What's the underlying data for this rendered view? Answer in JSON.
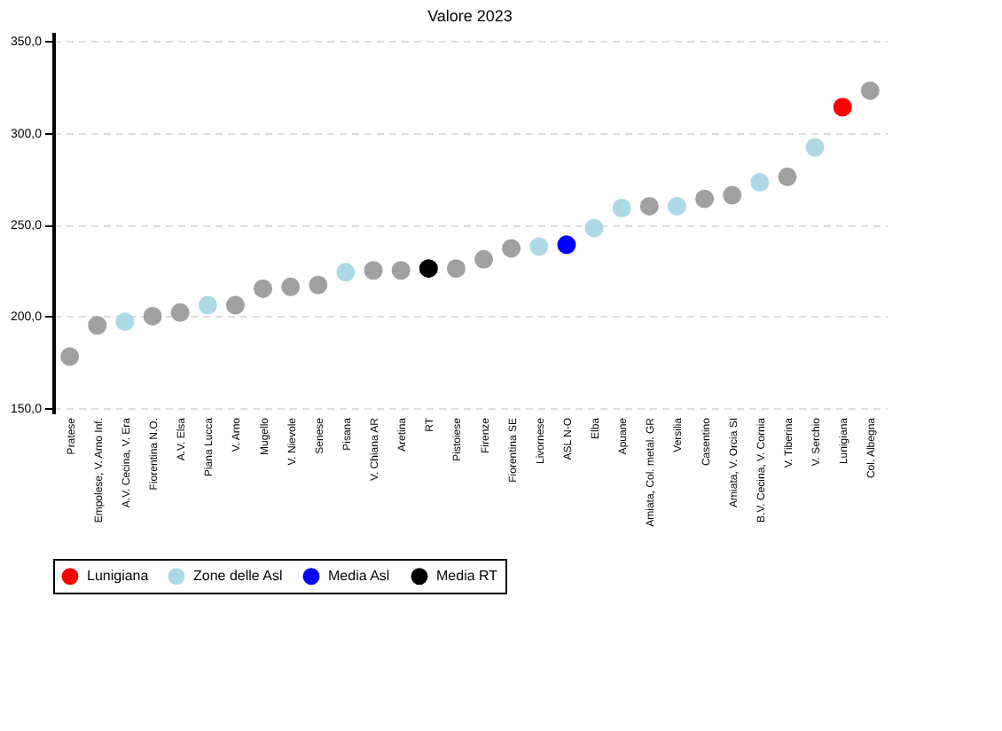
{
  "chart_data": {
    "type": "scatter",
    "title": "Valore 2023",
    "categories": [
      "Pratese",
      "Empolese, V. Arno Inf.",
      "A.V. Cecina, V. Era",
      "Fiorentina N.O.",
      "A.V. Elsa",
      "Piana Lucca",
      "V. Arno",
      "Mugello",
      "V. Nievole",
      "Senese",
      "Pisana",
      "V. Chiana AR",
      "Aretina",
      "RT",
      "Pistoiese",
      "Firenze",
      "Fiorentina SE",
      "Livornese",
      "ASL N-O",
      "Elba",
      "Apuane",
      "Amiata, Col. metal. GR",
      "Versilia",
      "Casentino",
      "Amiata, V. Orcia SI",
      "B.V. Cecina, V. Cornia",
      "V. Tiberina",
      "V. Serchio",
      "Lunigiana",
      "Col. Albegna"
    ],
    "series": [
      {
        "color": "#a0a0a0",
        "values": [
          178,
          195,
          null,
          200,
          202,
          null,
          206,
          215,
          216,
          217,
          null,
          225,
          225,
          null,
          226,
          231,
          237,
          null,
          null,
          null,
          null,
          260,
          null,
          264,
          266,
          null,
          276,
          null,
          null,
          323
        ]
      },
      {
        "name": "Lunigiana",
        "color": "#ff0000",
        "values": [
          null,
          null,
          null,
          null,
          null,
          null,
          null,
          null,
          null,
          null,
          null,
          null,
          null,
          null,
          null,
          null,
          null,
          null,
          null,
          null,
          null,
          null,
          null,
          null,
          null,
          null,
          null,
          null,
          314,
          null
        ]
      },
      {
        "name": "Zone delle Asl",
        "color": "#add8e6",
        "values": [
          null,
          null,
          197,
          null,
          null,
          206,
          null,
          null,
          null,
          null,
          224,
          null,
          null,
          null,
          null,
          null,
          null,
          238,
          null,
          248,
          259,
          null,
          260,
          null,
          null,
          273,
          null,
          292,
          null,
          null
        ]
      },
      {
        "name": "Media Asl",
        "color": "#0000ff",
        "values": [
          null,
          null,
          null,
          null,
          null,
          null,
          null,
          null,
          null,
          null,
          null,
          null,
          null,
          null,
          null,
          null,
          null,
          null,
          239,
          null,
          null,
          null,
          null,
          null,
          null,
          null,
          null,
          null,
          null,
          null
        ]
      },
      {
        "name": "Media RT",
        "color": "#000000",
        "values": [
          null,
          null,
          null,
          null,
          null,
          null,
          null,
          null,
          null,
          null,
          null,
          null,
          null,
          226,
          null,
          null,
          null,
          null,
          null,
          null,
          null,
          null,
          null,
          null,
          null,
          null,
          null,
          null,
          null,
          null
        ]
      }
    ],
    "ylim": [
      147,
      355
    ],
    "yticks": [
      {
        "value": 150,
        "label": "150,0"
      },
      {
        "value": 200,
        "label": "200,0"
      },
      {
        "value": 250,
        "label": "250,0"
      },
      {
        "value": 300,
        "label": "300,0"
      },
      {
        "value": 350,
        "label": "350,0"
      }
    ],
    "grid": "y",
    "legend": "bottom",
    "marker": "circle"
  }
}
